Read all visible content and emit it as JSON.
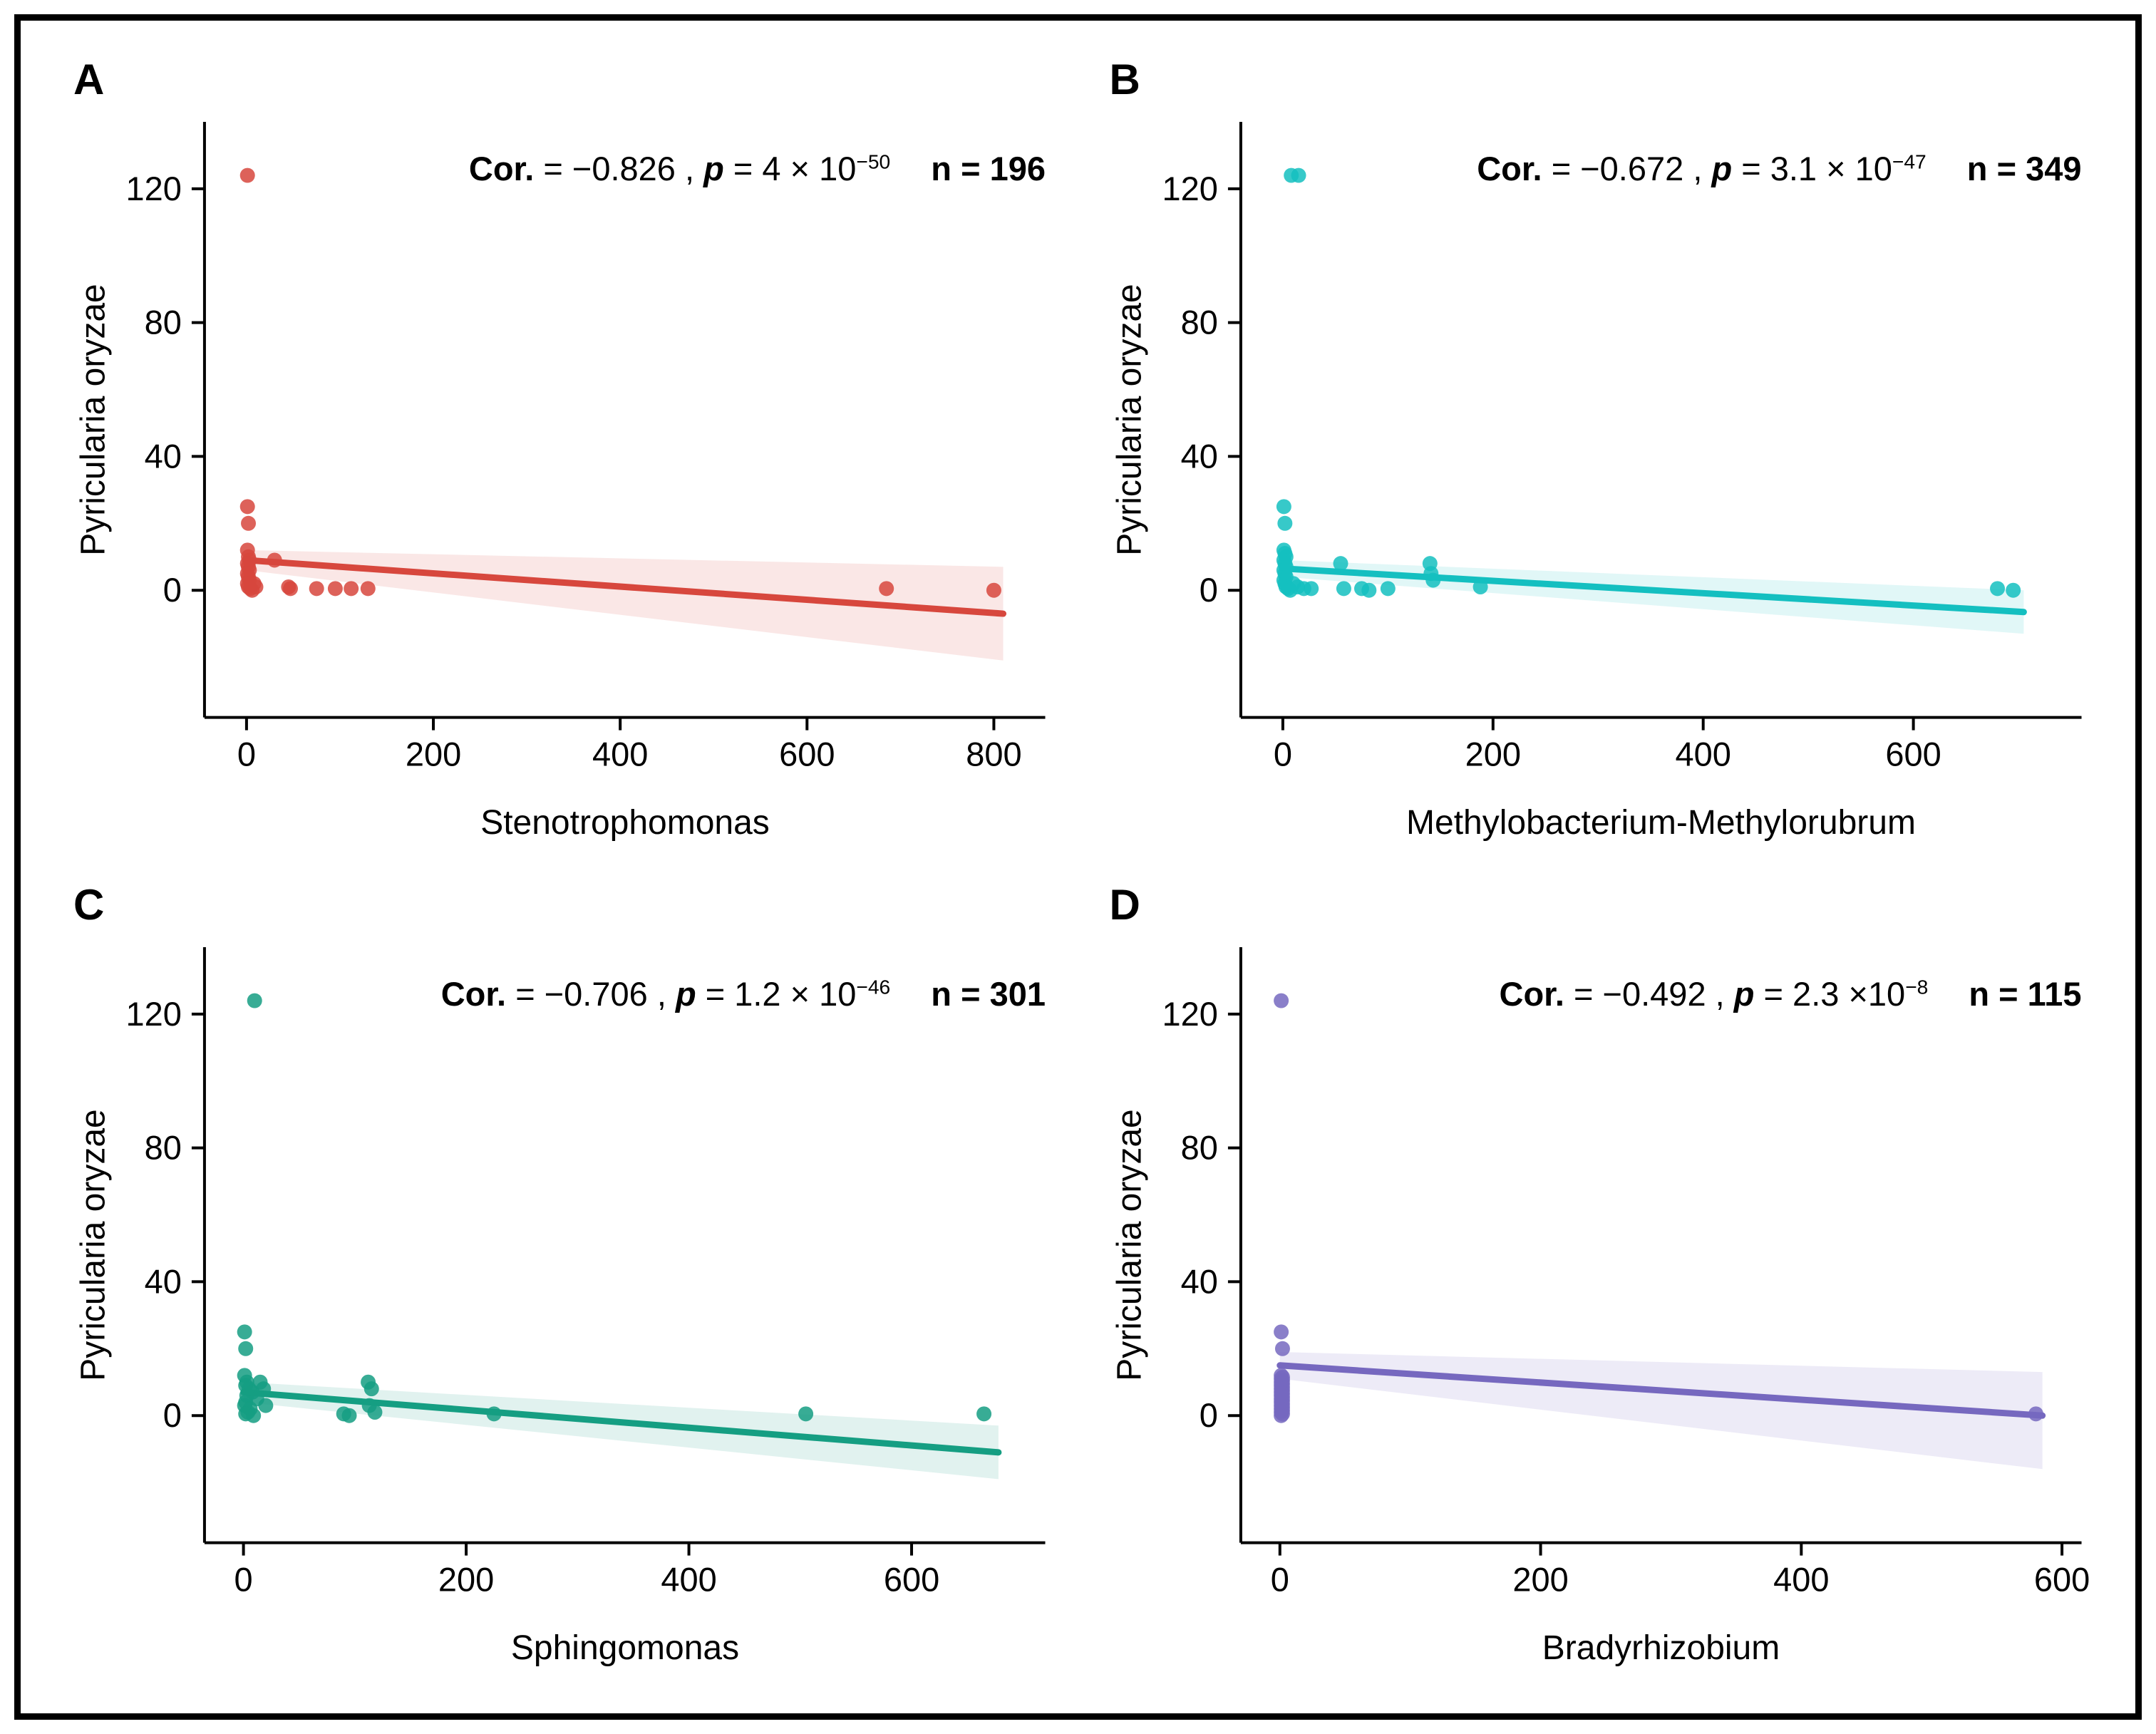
{
  "chart_data": [
    {
      "type": "scatter",
      "label": "A",
      "color": "#D7473D",
      "xlabel": "Stenotrophomonas",
      "ylabel": "Pyricularia oryzae",
      "xlim": [
        -45,
        855
      ],
      "ylim": [
        -38,
        140
      ],
      "xticks": [
        0,
        200,
        400,
        600,
        800
      ],
      "yticks": [
        0,
        40,
        80,
        120
      ],
      "grid": false,
      "stats": {
        "cor_label": "Cor.",
        "cor_value": "= −0.826 ,",
        "p_label": "p",
        "p_value": "= 4 × 10",
        "p_exp": "−50",
        "n_label": "n = 196"
      },
      "points": [
        [
          1,
          124
        ],
        [
          1,
          25
        ],
        [
          2,
          20
        ],
        [
          1,
          12
        ],
        [
          2,
          10
        ],
        [
          3,
          9
        ],
        [
          1,
          8
        ],
        [
          2,
          7
        ],
        [
          3,
          6
        ],
        [
          1,
          5
        ],
        [
          2,
          4
        ],
        [
          3,
          3
        ],
        [
          1,
          2
        ],
        [
          2,
          1
        ],
        [
          4,
          0.5
        ],
        [
          6,
          0
        ],
        [
          8,
          2
        ],
        [
          10,
          1
        ],
        [
          30,
          9
        ],
        [
          45,
          1
        ],
        [
          47,
          0.5
        ],
        [
          75,
          0.5
        ],
        [
          95,
          0.5
        ],
        [
          112,
          0.5
        ],
        [
          130,
          0.5
        ],
        [
          685,
          0.5
        ],
        [
          800,
          0
        ]
      ],
      "regression": {
        "x1": 0,
        "y1": 9,
        "x2": 810,
        "y2": -7
      },
      "band": [
        [
          0,
          12
        ],
        [
          810,
          7
        ],
        [
          810,
          -21
        ],
        [
          0,
          6
        ]
      ]
    },
    {
      "type": "scatter",
      "label": "B",
      "color": "#14BFC0",
      "xlabel": "Methylobacterium-Methylorubrum",
      "ylabel": "Pyricularia oryzae",
      "xlim": [
        -40,
        760
      ],
      "ylim": [
        -38,
        140
      ],
      "xticks": [
        0,
        200,
        400,
        600
      ],
      "yticks": [
        0,
        40,
        80,
        120
      ],
      "grid": false,
      "stats": {
        "cor_label": "Cor.",
        "cor_value": "= −0.672 ,",
        "p_label": "p",
        "p_value": "= 3.1 × 10",
        "p_exp": "−47",
        "n_label": "n = 349"
      },
      "points": [
        [
          8,
          124
        ],
        [
          15,
          124
        ],
        [
          1,
          25
        ],
        [
          2,
          20
        ],
        [
          1,
          12
        ],
        [
          2,
          11
        ],
        [
          3,
          10
        ],
        [
          1,
          9
        ],
        [
          2,
          8
        ],
        [
          3,
          7
        ],
        [
          1,
          6
        ],
        [
          2,
          5
        ],
        [
          3,
          4
        ],
        [
          1,
          3
        ],
        [
          2,
          2
        ],
        [
          3,
          1
        ],
        [
          5,
          0.5
        ],
        [
          7,
          0
        ],
        [
          10,
          2
        ],
        [
          14,
          1
        ],
        [
          20,
          0.5
        ],
        [
          27,
          0.5
        ],
        [
          55,
          8
        ],
        [
          58,
          0.5
        ],
        [
          75,
          0.5
        ],
        [
          82,
          0
        ],
        [
          100,
          0.5
        ],
        [
          140,
          8
        ],
        [
          141,
          5
        ],
        [
          143,
          3
        ],
        [
          188,
          1
        ],
        [
          680,
          0.5
        ],
        [
          695,
          0
        ]
      ],
      "regression": {
        "x1": 0,
        "y1": 6.5,
        "x2": 705,
        "y2": -6.5
      },
      "band": [
        [
          0,
          9
        ],
        [
          705,
          0
        ],
        [
          705,
          -13
        ],
        [
          0,
          4
        ]
      ]
    },
    {
      "type": "scatter",
      "label": "C",
      "color": "#159E82",
      "xlabel": "Sphingomonas",
      "ylabel": "Pyricularia oryzae",
      "xlim": [
        -35,
        720
      ],
      "ylim": [
        -38,
        140
      ],
      "xticks": [
        0,
        200,
        400,
        600
      ],
      "yticks": [
        0,
        40,
        80,
        120
      ],
      "grid": false,
      "stats": {
        "cor_label": "Cor.",
        "cor_value": "= −0.706 ,",
        "p_label": "p",
        "p_value": "= 1.2 × 10",
        "p_exp": "−46",
        "n_label": "n = 301"
      },
      "points": [
        [
          10,
          124
        ],
        [
          1,
          25
        ],
        [
          2,
          20
        ],
        [
          1,
          12
        ],
        [
          3,
          10
        ],
        [
          2,
          9
        ],
        [
          5,
          8
        ],
        [
          8,
          7
        ],
        [
          3,
          6
        ],
        [
          12,
          5
        ],
        [
          2,
          4
        ],
        [
          1,
          3
        ],
        [
          6,
          2
        ],
        [
          4,
          1
        ],
        [
          2,
          0.5
        ],
        [
          9,
          0
        ],
        [
          15,
          10
        ],
        [
          18,
          8
        ],
        [
          20,
          3
        ],
        [
          90,
          0.5
        ],
        [
          95,
          0
        ],
        [
          112,
          10
        ],
        [
          115,
          8
        ],
        [
          113,
          3
        ],
        [
          118,
          1
        ],
        [
          225,
          0.5
        ],
        [
          505,
          0.5
        ],
        [
          665,
          0.5
        ]
      ],
      "regression": {
        "x1": 0,
        "y1": 7,
        "x2": 678,
        "y2": -11
      },
      "band": [
        [
          0,
          10
        ],
        [
          678,
          -3
        ],
        [
          678,
          -19
        ],
        [
          0,
          4
        ]
      ]
    },
    {
      "type": "scatter",
      "label": "D",
      "color": "#7668BF",
      "xlabel": "Bradyrhizobium",
      "ylabel": "Pyricularia oryzae",
      "xlim": [
        -30,
        615
      ],
      "ylim": [
        -38,
        140
      ],
      "xticks": [
        0,
        200,
        400,
        600
      ],
      "yticks": [
        0,
        40,
        80,
        120
      ],
      "grid": false,
      "stats": {
        "cor_label": "Cor.",
        "cor_value": "= −0.492 ,",
        "p_label": "p",
        "p_value": "= 2.3 ×10",
        "p_exp": "−8",
        "n_label": "n = 115"
      },
      "points": [
        [
          1,
          124
        ],
        [
          1,
          25
        ],
        [
          2,
          20
        ],
        [
          1,
          12
        ],
        [
          2,
          11.5
        ],
        [
          1,
          11
        ],
        [
          2,
          10.5
        ],
        [
          1,
          10
        ],
        [
          2,
          9.5
        ],
        [
          1,
          9
        ],
        [
          2,
          8.5
        ],
        [
          1,
          8
        ],
        [
          2,
          7.5
        ],
        [
          1,
          7
        ],
        [
          2,
          6.5
        ],
        [
          1,
          6
        ],
        [
          2,
          5.5
        ],
        [
          1,
          5
        ],
        [
          2,
          4.5
        ],
        [
          1,
          4
        ],
        [
          2,
          3.5
        ],
        [
          1,
          3
        ],
        [
          2,
          2.5
        ],
        [
          1,
          2
        ],
        [
          2,
          1.5
        ],
        [
          1,
          1
        ],
        [
          2,
          0.5
        ],
        [
          1,
          0
        ],
        [
          580,
          0.5
        ]
      ],
      "regression": {
        "x1": 0,
        "y1": 15,
        "x2": 585,
        "y2": 0
      },
      "band": [
        [
          0,
          19
        ],
        [
          585,
          13
        ],
        [
          585,
          -16
        ],
        [
          0,
          11
        ]
      ]
    }
  ]
}
